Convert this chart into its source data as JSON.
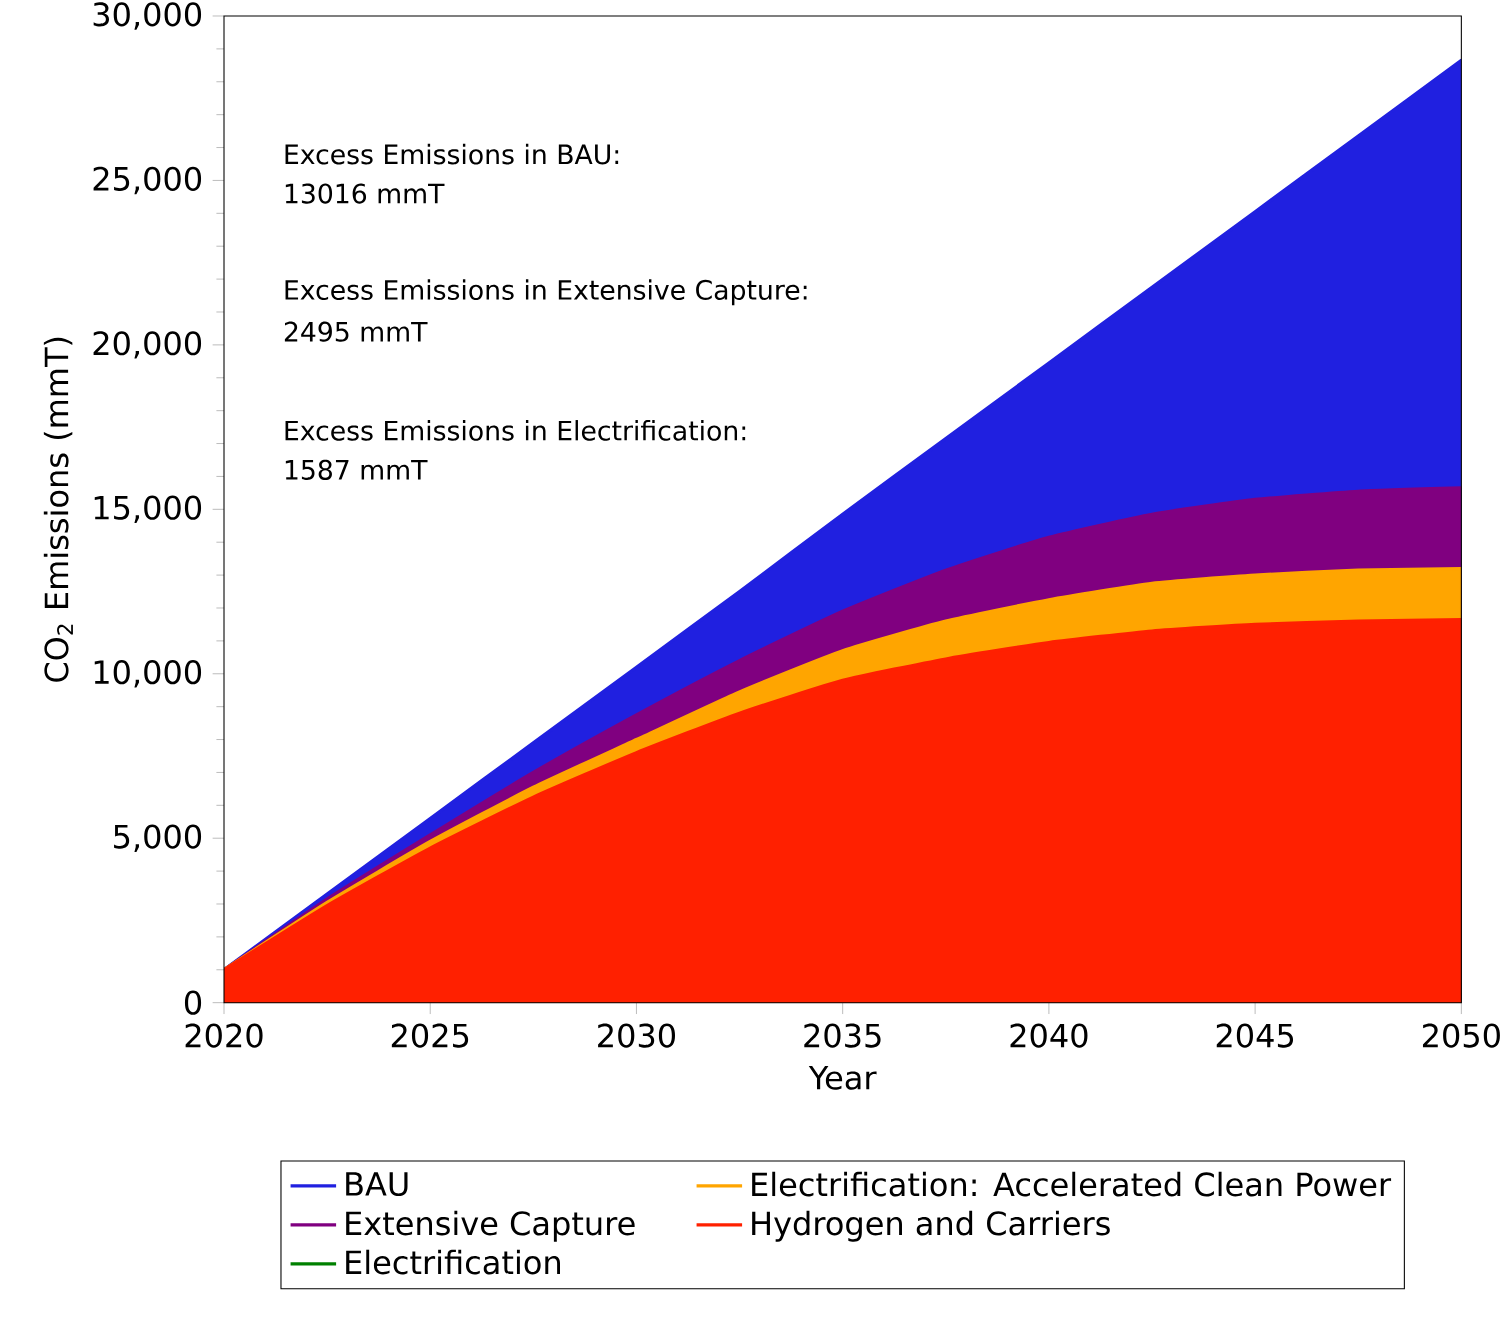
{
  "chart_data": {
    "type": "area",
    "xlabel": "Year",
    "ylabel": "CO$_{2}$ Emissions (mmT)",
    "x": [
      2020,
      2022.5,
      2025,
      2027.5,
      2030,
      2032.5,
      2035,
      2037.5,
      2040,
      2042.5,
      2045,
      2047.5,
      2050
    ],
    "series": [
      {
        "name": "BAU",
        "color": "#2020e0",
        "values": [
          1000,
          3300,
          5600,
          7900,
          10200,
          12500,
          14850,
          17150,
          19450,
          21750,
          24050,
          26350,
          28650
        ]
      },
      {
        "name": "Extensive Capture",
        "color": "#800080",
        "values": [
          1000,
          3150,
          5100,
          7000,
          8750,
          10400,
          11900,
          13150,
          14150,
          14850,
          15300,
          15550,
          15650
        ]
      },
      {
        "name": "Electrification",
        "color": "#008000",
        "values": [
          null,
          null,
          null,
          null,
          null,
          null,
          null,
          null,
          null,
          null,
          null,
          null,
          null
        ]
      },
      {
        "name": "Electrification: Accelerated Clean Power",
        "color": "#ffa500",
        "values": [
          1000,
          3050,
          4900,
          6550,
          8000,
          9450,
          10700,
          11600,
          12250,
          12750,
          13000,
          13150,
          13200
        ]
      },
      {
        "name": "Hydrogen and Carriers",
        "color": "#ff2000",
        "values": [
          1000,
          2950,
          4700,
          6250,
          7600,
          8800,
          9800,
          10450,
          10950,
          11300,
          11500,
          11600,
          11650
        ]
      }
    ],
    "xlim": [
      2020,
      2050
    ],
    "xticks": [
      2020,
      2025,
      2030,
      2035,
      2040,
      2045,
      2050
    ],
    "ylim": [
      0,
      30000
    ],
    "yticks": [
      0,
      {
        "value": 5000,
        "label": "5,000"
      },
      {
        "value": 10000,
        "label": "10,000"
      },
      {
        "value": 15000,
        "label": "15,000"
      },
      {
        "value": 20000,
        "label": "20,000"
      },
      {
        "value": 25000,
        "label": "25,000"
      },
      {
        "value": 30000,
        "label": "30,000"
      }
    ],
    "legend": "bottom",
    "grid": false,
    "annotations": [
      "Excess Emissions in BAU:",
      "13016 mmT",
      "Excess Emissions in Extensive Capture:",
      "2495 mmT",
      "Excess Emissions in Electrification:",
      "1587 mmT"
    ]
  }
}
